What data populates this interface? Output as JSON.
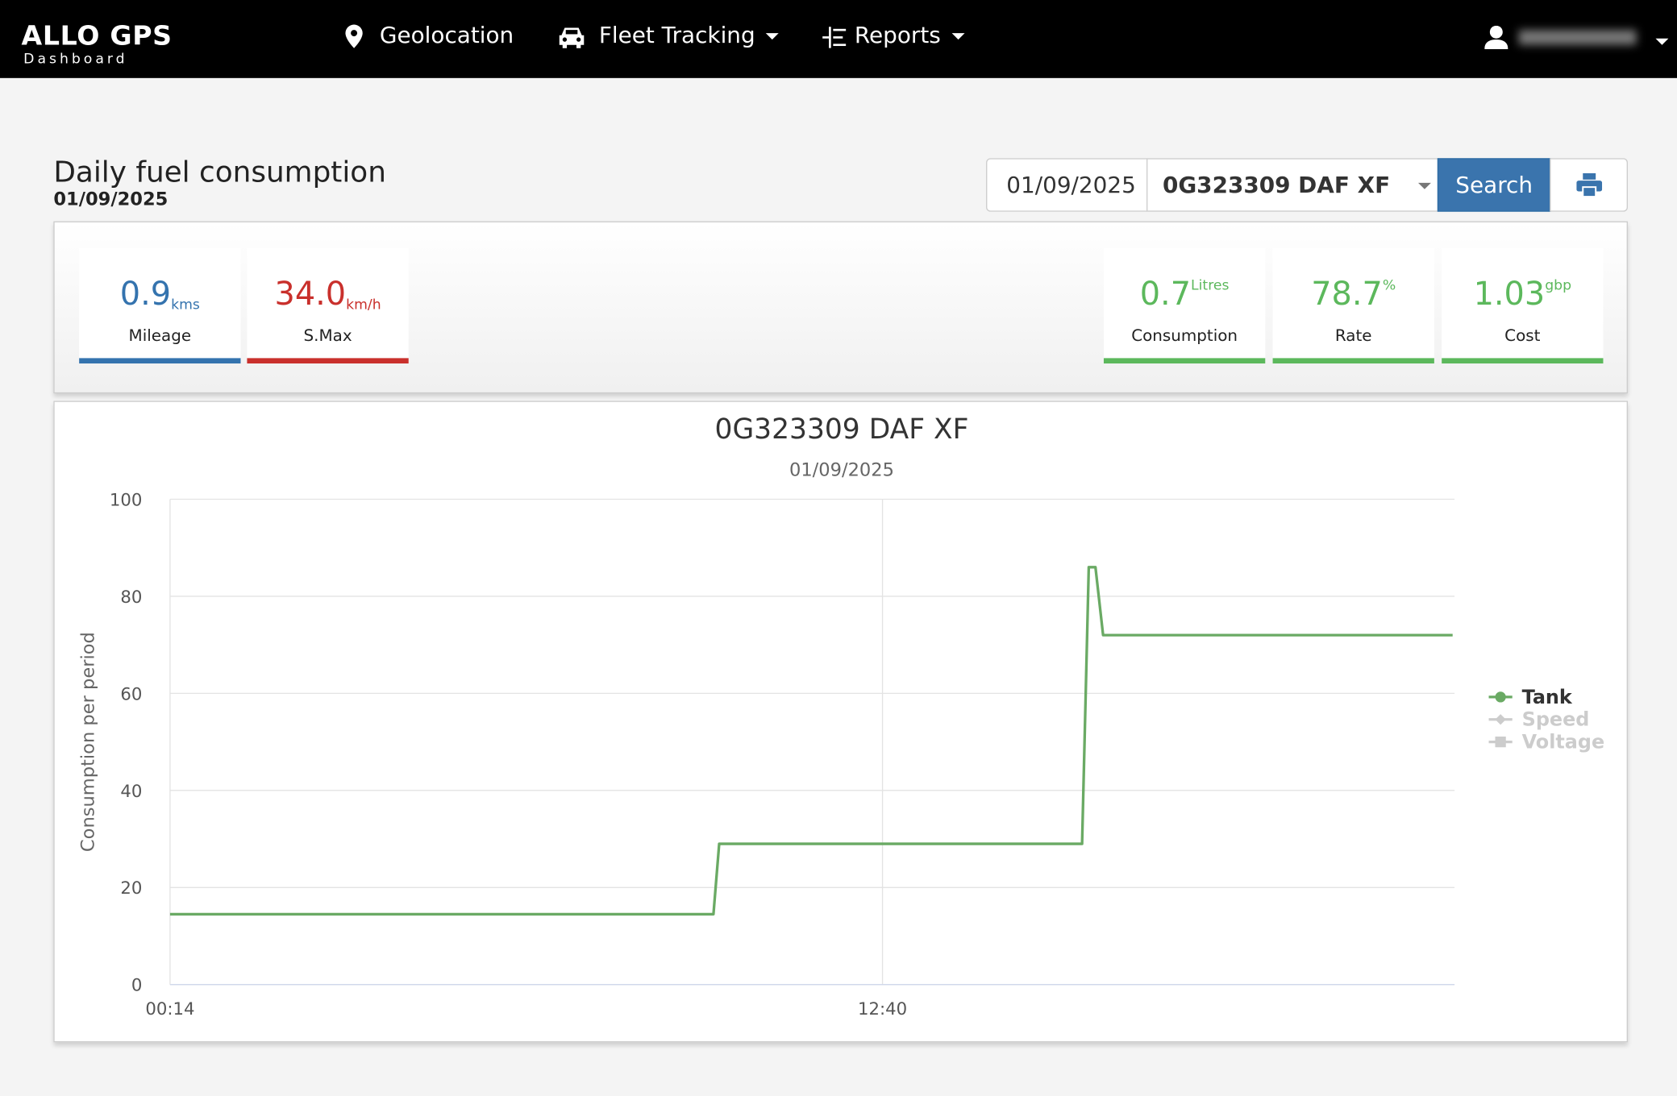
{
  "header": {
    "brand": "ALLO GPS",
    "brand_sub": "Dashboard",
    "nav": [
      "Geolocation",
      "Fleet Tracking",
      "Reports"
    ]
  },
  "page": {
    "title": "Daily fuel consumption",
    "date": "01/09/2025"
  },
  "filters": {
    "date": "01/09/2025",
    "vehicle": "0G323309 DAF XF",
    "search": "Search"
  },
  "stats": [
    {
      "value": "0.9",
      "unit": "kms",
      "label": "Mileage",
      "color": "#3473ae"
    },
    {
      "value": "34.0",
      "unit": "km/h",
      "label": "S.Max",
      "color": "#c9302c"
    },
    {
      "value": "0.7",
      "unit": "Litres",
      "label": "Consumption",
      "color": "#5cb85c"
    },
    {
      "value": "78.7",
      "unit": "%",
      "label": "Rate",
      "color": "#5cb85c"
    },
    {
      "value": "1.03",
      "unit": "gbp",
      "label": "Cost",
      "color": "#5cb85c"
    }
  ],
  "chart_data": {
    "type": "line",
    "title": "0G323309 DAF XF",
    "subtitle": "01/09/2025",
    "y_label": "Consumption per period",
    "xlim": [
      14,
      1359
    ],
    "xticks": [
      {
        "value": 14,
        "label": "00:14"
      },
      {
        "value": 760,
        "label": "12:40"
      }
    ],
    "ylim": [
      0,
      100
    ],
    "yticks": [
      0,
      20,
      40,
      60,
      80,
      100
    ],
    "grid": true,
    "series": [
      {
        "name": "Tank",
        "color": "#6aaa64",
        "x": [
          14,
          583,
          589,
          969,
          976,
          983,
          991,
          1357
        ],
        "values": [
          14.5,
          14.5,
          29,
          29,
          86,
          86,
          72,
          72
        ]
      }
    ],
    "hidden_series": [
      "Speed",
      "Voltage"
    ]
  }
}
